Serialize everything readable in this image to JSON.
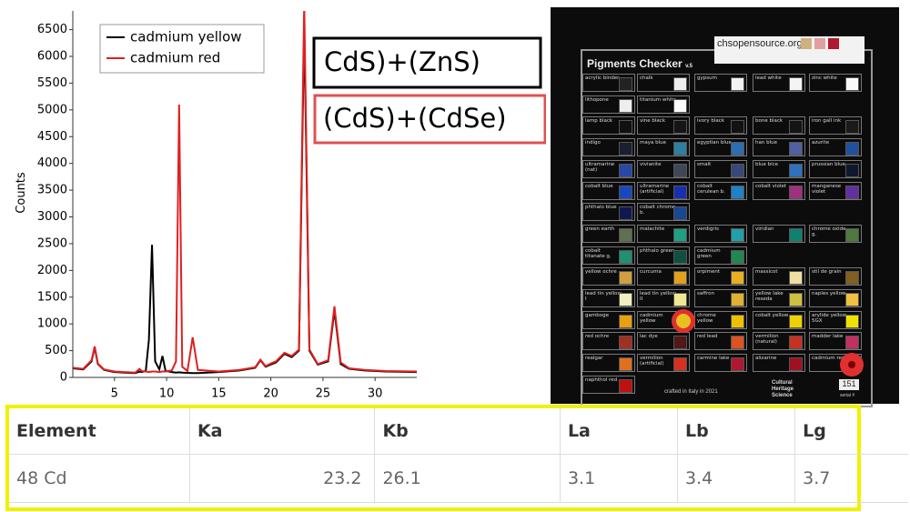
{
  "chart_data": {
    "type": "line",
    "y_label": "Counts",
    "x": [
      1,
      2,
      2.8,
      3.1,
      3.4,
      4,
      5,
      6,
      7,
      7.4,
      7.6,
      8,
      8.3,
      8.6,
      8.9,
      9.3,
      9.6,
      9.9,
      10.5,
      10.9,
      11.2,
      11.5,
      12,
      12.5,
      13,
      15,
      17,
      18.5,
      19,
      19.5,
      20,
      20.5,
      21.3,
      22,
      22.7,
      23.2,
      23.7,
      24.5,
      25.5,
      26.1,
      26.7,
      27.5,
      29,
      31,
      34
    ],
    "series": [
      {
        "name": "cadmium yellow",
        "color": "#000000",
        "values": [
          170,
          150,
          300,
          560,
          250,
          140,
          100,
          90,
          80,
          110,
          100,
          120,
          700,
          2480,
          300,
          150,
          400,
          120,
          100,
          90,
          95,
          90,
          85,
          80,
          80,
          100,
          130,
          180,
          320,
          200,
          240,
          280,
          440,
          380,
          500,
          6600,
          500,
          240,
          300,
          1250,
          250,
          160,
          130,
          110,
          100
        ]
      },
      {
        "name": "cadmium red",
        "color": "#e02020",
        "values": [
          180,
          160,
          320,
          580,
          260,
          150,
          110,
          100,
          90,
          160,
          120,
          110,
          100,
          110,
          110,
          100,
          110,
          110,
          130,
          300,
          5100,
          200,
          120,
          750,
          140,
          110,
          140,
          190,
          330,
          210,
          260,
          300,
          460,
          400,
          520,
          7000,
          520,
          250,
          320,
          1330,
          280,
          170,
          140,
          120,
          110
        ]
      }
    ],
    "xlim": [
      1,
      34
    ],
    "xticks": [
      5,
      10,
      15,
      20,
      25,
      30
    ],
    "ylim": [
      0,
      6850
    ],
    "yticks": [
      0,
      500,
      1000,
      1500,
      2000,
      2500,
      3000,
      3500,
      4000,
      4500,
      5000,
      5500,
      6000,
      6500
    ],
    "annotations": [
      "CdS)+(ZnS)",
      "(CdS)+(CdSe)"
    ]
  },
  "photo": {
    "title": "Pigments Checker",
    "version": "v.5",
    "website": "chsopensource.org",
    "crafted": "crafted in Italy in 2021",
    "logo": "Cultural Heritage Science",
    "serial_label": "serial #",
    "serial": "151",
    "pigments": [
      [
        {
          "name": "acrylic binder",
          "color": "#222"
        },
        {
          "name": "chalk",
          "color": "#eee"
        },
        {
          "name": "gypsum",
          "color": "#f2f2f2"
        },
        {
          "name": "lead white",
          "color": "#f4f4f4"
        },
        {
          "name": "zinc white",
          "color": "#fafafa"
        }
      ],
      [
        {
          "name": "lithopone",
          "color": "#eee"
        },
        {
          "name": "titanium white",
          "color": "#fff"
        }
      ],
      [
        {
          "name": "lamp black",
          "color": "#111"
        },
        {
          "name": "vine black",
          "color": "#151515"
        },
        {
          "name": "ivory black",
          "color": "#121212"
        },
        {
          "name": "bone black",
          "color": "#141414"
        },
        {
          "name": "iron gall ink",
          "color": "#1a1a1a"
        }
      ],
      [
        {
          "name": "indigo",
          "color": "#1a2030"
        },
        {
          "name": "maya blue",
          "color": "#2f7fa0"
        },
        {
          "name": "egyptian blue",
          "color": "#2a70b0"
        },
        {
          "name": "han blue",
          "color": "#5060a0"
        },
        {
          "name": "azurite",
          "color": "#2050a0"
        }
      ],
      [
        {
          "name": "ultramarine (nat)",
          "color": "#2848a8"
        },
        {
          "name": "vivianite",
          "color": "#404858"
        },
        {
          "name": "smalt",
          "color": "#384878"
        },
        {
          "name": "blue bice",
          "color": "#3070c0"
        },
        {
          "name": "prussian blue",
          "color": "#101830"
        }
      ],
      [
        {
          "name": "cobalt blue",
          "color": "#1848c0"
        },
        {
          "name": "ultramarine (artificial)",
          "color": "#1830b0"
        },
        {
          "name": "cobalt cerulean b.",
          "color": "#2080c8"
        },
        {
          "name": "cobalt violet",
          "color": "#a03080"
        },
        {
          "name": "manganese violet",
          "color": "#6030a0"
        }
      ],
      [
        {
          "name": "phthalo blue",
          "color": "#101850"
        },
        {
          "name": "cobalt chrome b.",
          "color": "#184890"
        }
      ],
      [
        {
          "name": "green earth",
          "color": "#607050"
        },
        {
          "name": "malachite",
          "color": "#20a080"
        },
        {
          "name": "verdigris",
          "color": "#20a0a8"
        },
        {
          "name": "viridian",
          "color": "#108070"
        },
        {
          "name": "chrome oxide g.",
          "color": "#507840"
        }
      ],
      [
        {
          "name": "cobalt titanate g.",
          "color": "#209070"
        },
        {
          "name": "phthalo green",
          "color": "#105040"
        },
        {
          "name": "cadmium green",
          "color": "#208850"
        }
      ],
      [
        {
          "name": "yellow ochre",
          "color": "#d0a040"
        },
        {
          "name": "curcuma",
          "color": "#e0a020"
        },
        {
          "name": "orpiment",
          "color": "#e8b020"
        },
        {
          "name": "massicot",
          "color": "#f0e0a0"
        },
        {
          "name": "stil de grain",
          "color": "#806020"
        }
      ],
      [
        {
          "name": "lead tin yellow I",
          "color": "#f0f0c0"
        },
        {
          "name": "lead tin yellow II",
          "color": "#f0e890"
        },
        {
          "name": "saffron",
          "color": "#e0b030"
        },
        {
          "name": "yellow lake reseda",
          "color": "#d0c040"
        },
        {
          "name": "naples yellow",
          "color": "#f0c040"
        }
      ],
      [
        {
          "name": "gamboge",
          "color": "#e8a010"
        },
        {
          "name": "cadmium yellow",
          "color": "#f0c010"
        },
        {
          "name": "chrome yellow",
          "color": "#f0c000"
        },
        {
          "name": "cobalt yellow",
          "color": "#f0d000"
        },
        {
          "name": "arylide yellow 5GX",
          "color": "#f0e000"
        }
      ],
      [
        {
          "name": "red ochre",
          "color": "#a03020"
        },
        {
          "name": "lac dye",
          "color": "#501818"
        },
        {
          "name": "red lead",
          "color": "#e05020"
        },
        {
          "name": "vermilion (natural)",
          "color": "#c83020"
        },
        {
          "name": "madder lake",
          "color": "#c03060"
        }
      ],
      [
        {
          "name": "realgar",
          "color": "#e07020"
        },
        {
          "name": "vermilion (artificial)",
          "color": "#d83020"
        },
        {
          "name": "carmine lake",
          "color": "#b01830"
        },
        {
          "name": "alizarine",
          "color": "#a01020"
        },
        {
          "name": "cadmium red",
          "color": "#c01818"
        }
      ],
      [
        {
          "name": "naphthol red",
          "color": "#c01010"
        }
      ]
    ]
  },
  "table": {
    "headers": [
      "Element",
      "Ka",
      "Kb",
      "La",
      "Lb",
      "Lg"
    ],
    "rows": [
      [
        "48 Cd",
        23.2,
        26.1,
        3.1,
        3.4,
        3.7
      ]
    ]
  }
}
